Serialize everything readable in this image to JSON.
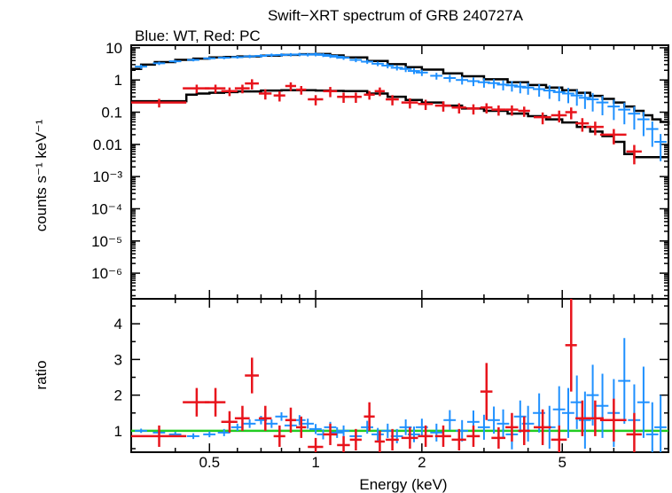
{
  "title": "Swift−XRT spectrum of GRB 240727A",
  "subtitle": "Blue: WT, Red: PC",
  "colors": {
    "wt": "#1e90ff",
    "pc": "#e8141c",
    "model": "#000000",
    "unity": "#22cc22",
    "axis": "#000000"
  },
  "chart_data": [
    {
      "type": "scatter",
      "panel": "spectrum",
      "ylabel": "counts s⁻¹ keV⁻¹",
      "xscale": "log",
      "yscale": "log",
      "xlim": [
        0.3,
        10
      ],
      "ylim": [
        1.6e-07,
        12
      ],
      "ytick_labels": [
        {
          "v": 10,
          "t": "10"
        },
        {
          "v": 1,
          "t": "1"
        },
        {
          "v": 0.1,
          "t": "0.1"
        },
        {
          "v": 0.01,
          "t": "0.01"
        },
        {
          "v": 0.001,
          "t": "10⁻³"
        },
        {
          "v": 0.0001,
          "t": "10⁻⁴"
        },
        {
          "v": 1e-05,
          "t": "10⁻⁵"
        },
        {
          "v": 1e-06,
          "t": "10⁻⁶"
        }
      ],
      "series": [
        {
          "name": "WT",
          "color_key": "wt",
          "x": [
            0.32,
            0.36,
            0.4,
            0.45,
            0.5,
            0.55,
            0.6,
            0.65,
            0.7,
            0.75,
            0.8,
            0.85,
            0.9,
            0.95,
            1.0,
            1.05,
            1.1,
            1.15,
            1.2,
            1.3,
            1.4,
            1.5,
            1.6,
            1.7,
            1.8,
            1.9,
            2.0,
            2.2,
            2.4,
            2.6,
            2.8,
            3.0,
            3.2,
            3.4,
            3.6,
            3.8,
            4.0,
            4.3,
            4.6,
            4.9,
            5.2,
            5.5,
            5.8,
            6.1,
            6.5,
            7.0,
            7.5,
            8.0,
            8.5,
            9.0,
            9.5
          ],
          "y": [
            2.6,
            3.3,
            3.8,
            4.2,
            4.7,
            4.9,
            5.1,
            5.4,
            5.6,
            5.9,
            6.0,
            6.1,
            6.2,
            6.1,
            6.3,
            6.0,
            5.6,
            5.3,
            4.9,
            4.2,
            3.7,
            3.2,
            2.8,
            2.4,
            2.2,
            1.9,
            1.7,
            1.35,
            1.15,
            1.0,
            0.92,
            0.85,
            0.8,
            0.72,
            0.68,
            0.62,
            0.58,
            0.52,
            0.47,
            0.42,
            0.38,
            0.33,
            0.28,
            0.25,
            0.2,
            0.15,
            0.12,
            0.09,
            0.06,
            0.03,
            0.012
          ],
          "yerr_frac": [
            0.15,
            0.12,
            0.1,
            0.1,
            0.1,
            0.1,
            0.1,
            0.12,
            0.12,
            0.12,
            0.12,
            0.12,
            0.12,
            0.12,
            0.14,
            0.14,
            0.14,
            0.14,
            0.14,
            0.15,
            0.15,
            0.16,
            0.18,
            0.18,
            0.2,
            0.2,
            0.22,
            0.24,
            0.26,
            0.28,
            0.3,
            0.32,
            0.32,
            0.34,
            0.36,
            0.38,
            0.4,
            0.42,
            0.45,
            0.48,
            0.5,
            0.52,
            0.55,
            0.58,
            0.6,
            0.62,
            0.65,
            0.68,
            0.7,
            0.72,
            0.75
          ]
        },
        {
          "name": "PC",
          "color_key": "pc",
          "x": [
            0.36,
            0.46,
            0.52,
            0.57,
            0.62,
            0.66,
            0.72,
            0.79,
            0.85,
            0.91,
            1.0,
            1.1,
            1.2,
            1.3,
            1.42,
            1.52,
            1.65,
            1.85,
            2.05,
            2.3,
            2.55,
            2.8,
            3.05,
            3.3,
            3.6,
            3.9,
            4.4,
            4.9,
            5.3,
            5.7,
            6.2,
            7.0,
            8.0
          ],
          "y": [
            0.2,
            0.55,
            0.55,
            0.45,
            0.55,
            0.78,
            0.38,
            0.33,
            0.65,
            0.5,
            0.25,
            0.45,
            0.3,
            0.3,
            0.35,
            0.45,
            0.25,
            0.2,
            0.18,
            0.16,
            0.14,
            0.13,
            0.14,
            0.12,
            0.12,
            0.11,
            0.07,
            0.08,
            0.1,
            0.045,
            0.035,
            0.02,
            0.006
          ],
          "xerr": [
            0.07,
            0.04,
            0.035,
            0.03,
            0.03,
            0.03,
            0.03,
            0.03,
            0.03,
            0.03,
            0.05,
            0.05,
            0.05,
            0.05,
            0.05,
            0.05,
            0.07,
            0.1,
            0.1,
            0.12,
            0.12,
            0.12,
            0.12,
            0.15,
            0.15,
            0.15,
            0.25,
            0.25,
            0.2,
            0.25,
            0.35,
            0.6,
            0.4
          ],
          "yerr_frac": [
            0.3,
            0.3,
            0.3,
            0.3,
            0.3,
            0.35,
            0.35,
            0.35,
            0.3,
            0.3,
            0.35,
            0.35,
            0.35,
            0.35,
            0.3,
            0.3,
            0.35,
            0.35,
            0.35,
            0.35,
            0.35,
            0.35,
            0.35,
            0.35,
            0.35,
            0.35,
            0.4,
            0.4,
            0.4,
            0.45,
            0.45,
            0.5,
            0.6
          ]
        }
      ],
      "models": [
        {
          "name": "WT model",
          "x": [
            0.3,
            0.32,
            0.35,
            0.4,
            0.45,
            0.5,
            0.55,
            0.6,
            0.7,
            0.8,
            0.9,
            1.0,
            1.1,
            1.2,
            1.4,
            1.6,
            1.8,
            2.0,
            2.3,
            2.6,
            3.0,
            3.5,
            4.0,
            4.5,
            5.0,
            5.5,
            6.0,
            6.5,
            7.0,
            7.5,
            8.0,
            8.5,
            9.0,
            9.5,
            10.0
          ],
          "y": [
            2.2,
            3.0,
            3.6,
            4.2,
            4.6,
            5.0,
            5.2,
            5.4,
            5.7,
            6.0,
            6.3,
            6.4,
            5.8,
            5.0,
            3.9,
            3.1,
            2.5,
            2.1,
            1.6,
            1.3,
            1.05,
            0.85,
            0.7,
            0.58,
            0.48,
            0.4,
            0.32,
            0.26,
            0.2,
            0.15,
            0.11,
            0.08,
            0.06,
            0.05,
            0.04
          ]
        },
        {
          "name": "PC model",
          "x": [
            0.3,
            0.35,
            0.4,
            0.43,
            0.46,
            0.5,
            0.55,
            0.6,
            0.7,
            0.8,
            0.9,
            1.0,
            1.1,
            1.2,
            1.4,
            1.6,
            1.8,
            2.0,
            2.3,
            2.6,
            3.0,
            3.5,
            4.0,
            4.5,
            5.0,
            5.5,
            6.0,
            6.5,
            7.0,
            7.5,
            8.0,
            8.5,
            9.0,
            9.5,
            10.0
          ],
          "y": [
            0.22,
            0.22,
            0.22,
            0.35,
            0.38,
            0.4,
            0.42,
            0.44,
            0.47,
            0.48,
            0.48,
            0.47,
            0.46,
            0.45,
            0.38,
            0.3,
            0.24,
            0.2,
            0.16,
            0.13,
            0.11,
            0.09,
            0.075,
            0.06,
            0.048,
            0.035,
            0.025,
            0.018,
            0.012,
            0.005,
            0.004,
            0.004,
            0.004,
            0.004,
            0.004
          ]
        }
      ]
    },
    {
      "type": "scatter",
      "panel": "ratio",
      "xlabel": "Energy (keV)",
      "ylabel": "ratio",
      "xscale": "log",
      "xlim": [
        0.3,
        10
      ],
      "ylim": [
        0.4,
        4.7
      ],
      "ytick_labels": [
        {
          "v": 1,
          "t": "1"
        },
        {
          "v": 2,
          "t": "2"
        },
        {
          "v": 3,
          "t": "3"
        },
        {
          "v": 4,
          "t": "4"
        }
      ],
      "xtick_labels": [
        {
          "v": 0.5,
          "t": "0.5"
        },
        {
          "v": 1,
          "t": "1"
        },
        {
          "v": 2,
          "t": "2"
        },
        {
          "v": 5,
          "t": "5"
        }
      ],
      "unity_line": 1.0,
      "series": [
        {
          "name": "WT",
          "color_key": "wt",
          "x": [
            0.32,
            0.36,
            0.4,
            0.45,
            0.5,
            0.55,
            0.6,
            0.65,
            0.7,
            0.75,
            0.8,
            0.85,
            0.9,
            0.95,
            1.0,
            1.05,
            1.1,
            1.15,
            1.2,
            1.3,
            1.4,
            1.5,
            1.6,
            1.7,
            1.8,
            1.9,
            2.0,
            2.2,
            2.4,
            2.6,
            2.8,
            3.0,
            3.2,
            3.4,
            3.6,
            3.8,
            4.0,
            4.3,
            4.6,
            4.9,
            5.2,
            5.5,
            5.8,
            6.1,
            6.5,
            7.0,
            7.5,
            8.0,
            8.5,
            9.0,
            9.5
          ],
          "y": [
            1.0,
            0.95,
            0.9,
            0.85,
            0.9,
            0.95,
            1.1,
            1.2,
            1.3,
            1.2,
            1.4,
            1.15,
            1.3,
            1.2,
            1.05,
            0.9,
            1.1,
            0.95,
            1.0,
            0.85,
            1.1,
            0.9,
            1.0,
            0.85,
            1.1,
            0.9,
            1.1,
            0.95,
            1.3,
            1.0,
            1.25,
            1.1,
            1.3,
            1.2,
            0.9,
            1.4,
            1.2,
            1.5,
            1.1,
            1.6,
            1.5,
            1.8,
            1.3,
            2.0,
            1.7,
            1.5,
            2.4,
            1.3,
            1.8,
            0.9,
            1.1
          ],
          "yerr": [
            0.06,
            0.06,
            0.07,
            0.08,
            0.08,
            0.1,
            0.1,
            0.12,
            0.12,
            0.12,
            0.12,
            0.12,
            0.14,
            0.14,
            0.14,
            0.14,
            0.15,
            0.15,
            0.15,
            0.16,
            0.18,
            0.18,
            0.2,
            0.2,
            0.22,
            0.22,
            0.24,
            0.25,
            0.28,
            0.3,
            0.32,
            0.35,
            0.38,
            0.4,
            0.42,
            0.45,
            0.5,
            0.55,
            0.6,
            0.65,
            0.7,
            0.75,
            0.8,
            0.85,
            0.9,
            0.95,
            1.2,
            1.0,
            1.0,
            0.9,
            0.9
          ]
        },
        {
          "name": "PC",
          "color_key": "pc",
          "x": [
            0.36,
            0.46,
            0.52,
            0.57,
            0.62,
            0.66,
            0.72,
            0.79,
            0.85,
            0.91,
            1.0,
            1.1,
            1.2,
            1.3,
            1.42,
            1.52,
            1.65,
            1.85,
            2.05,
            2.3,
            2.55,
            2.8,
            3.05,
            3.3,
            3.6,
            3.9,
            4.4,
            4.9,
            5.3,
            5.7,
            6.2,
            7.0,
            8.0
          ],
          "y": [
            0.85,
            1.8,
            1.8,
            1.25,
            1.35,
            2.55,
            1.35,
            0.85,
            1.3,
            1.1,
            0.55,
            0.9,
            0.6,
            0.75,
            1.4,
            0.7,
            0.75,
            0.8,
            0.85,
            0.85,
            0.75,
            0.85,
            2.1,
            0.8,
            1.1,
            1.0,
            1.1,
            0.75,
            3.4,
            1.35,
            1.35,
            1.3,
            0.9
          ],
          "xerr": [
            0.07,
            0.04,
            0.035,
            0.03,
            0.03,
            0.03,
            0.03,
            0.03,
            0.03,
            0.03,
            0.05,
            0.05,
            0.05,
            0.05,
            0.05,
            0.05,
            0.07,
            0.1,
            0.1,
            0.12,
            0.12,
            0.12,
            0.12,
            0.15,
            0.15,
            0.15,
            0.25,
            0.25,
            0.2,
            0.25,
            0.35,
            0.6,
            0.4
          ],
          "yerr": [
            0.3,
            0.4,
            0.4,
            0.3,
            0.35,
            0.5,
            0.35,
            0.3,
            0.35,
            0.3,
            0.25,
            0.3,
            0.25,
            0.3,
            0.4,
            0.3,
            0.3,
            0.3,
            0.3,
            0.3,
            0.3,
            0.3,
            0.8,
            0.3,
            0.4,
            0.4,
            0.5,
            0.4,
            1.3,
            0.5,
            0.5,
            0.6,
            0.6
          ]
        }
      ]
    }
  ]
}
